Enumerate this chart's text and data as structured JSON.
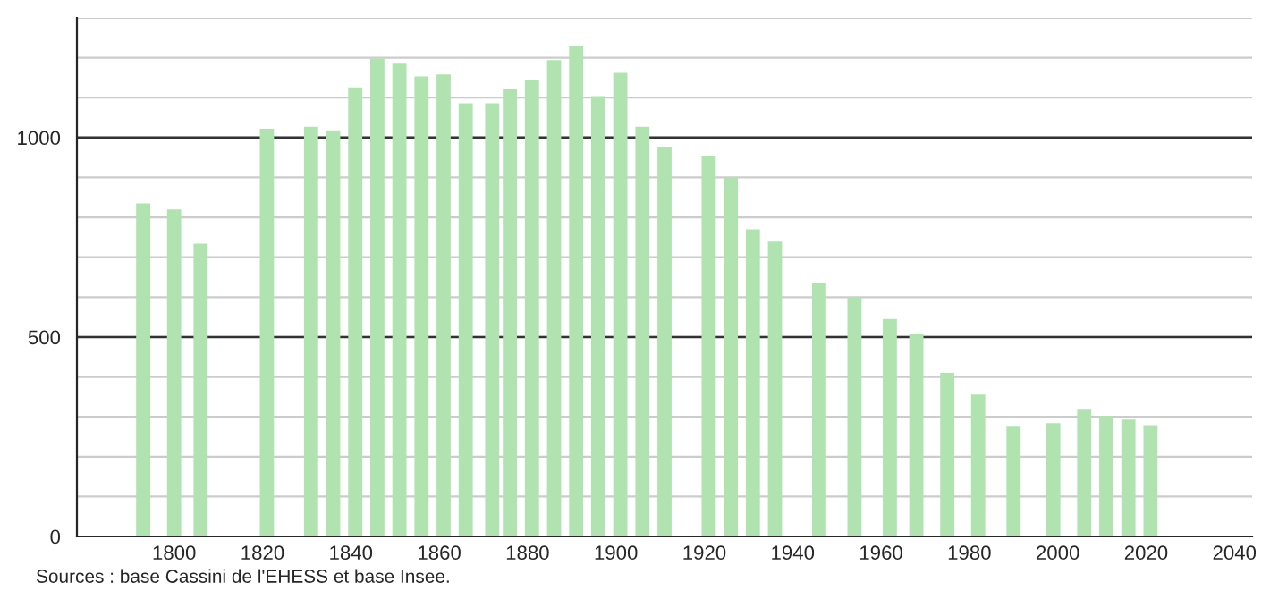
{
  "chart_data": {
    "type": "bar",
    "x": [
      1793,
      1800,
      1806,
      1821,
      1831,
      1836,
      1841,
      1846,
      1851,
      1856,
      1861,
      1866,
      1872,
      1876,
      1881,
      1886,
      1891,
      1896,
      1901,
      1906,
      1911,
      1921,
      1926,
      1931,
      1936,
      1946,
      1954,
      1962,
      1968,
      1975,
      1982,
      1990,
      1999,
      2006,
      2011,
      2016,
      2021
    ],
    "values": [
      835,
      820,
      734,
      1022,
      1027,
      1018,
      1126,
      1198,
      1185,
      1153,
      1158,
      1086,
      1086,
      1122,
      1144,
      1194,
      1230,
      1104,
      1162,
      1027,
      977,
      955,
      901,
      770,
      739,
      635,
      599,
      545,
      509,
      410,
      356,
      275,
      284,
      320,
      302,
      293,
      279
    ],
    "color": "#b1e3b1",
    "xlim": [
      1778,
      2044
    ],
    "xticks": [
      1800,
      1820,
      1840,
      1860,
      1880,
      1900,
      1920,
      1940,
      1960,
      1980,
      2000,
      2020,
      2040
    ],
    "ylim": [
      0,
      1300
    ],
    "yticks": [
      0,
      {
        "value": 100,
        "label": null
      },
      {
        "value": 200,
        "label": null
      },
      {
        "value": 300,
        "label": null
      },
      {
        "value": 400,
        "label": null
      },
      500,
      {
        "value": 600,
        "label": null
      },
      {
        "value": 700,
        "label": null
      },
      {
        "value": 800,
        "label": null
      },
      {
        "value": 900,
        "label": null
      },
      1000,
      {
        "value": 1100,
        "label": null
      },
      {
        "value": 1200,
        "label": null
      },
      {
        "value": 1300,
        "label": null
      }
    ],
    "grid": "y",
    "annotations": [
      "Sources : base Cassini de l'EHESS et base Insee."
    ]
  }
}
